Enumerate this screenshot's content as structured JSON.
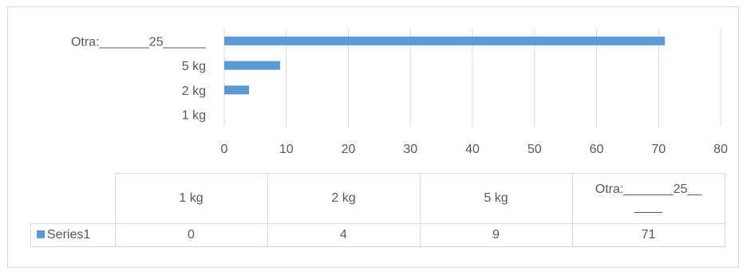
{
  "chart_data": {
    "type": "bar",
    "orientation": "horizontal",
    "categories": [
      "1 kg",
      "2 kg",
      "5 kg",
      "Otra:_______25______"
    ],
    "series": [
      {
        "name": "Series1",
        "values": [
          0,
          4,
          9,
          71
        ]
      }
    ],
    "xlim": [
      0,
      80
    ],
    "xticks": [
      "0",
      "10",
      "20",
      "30",
      "40",
      "50",
      "60",
      "70",
      "80"
    ],
    "grid": true,
    "legend": "data-table",
    "bar_color": "#5b9bd5",
    "grid_color": "#d9d9d9",
    "data_table": {
      "headers": [
        "1 kg",
        "2 kg",
        "5 kg",
        "Otra:_______25__\n____"
      ],
      "series_label": "Series1",
      "values": [
        "0",
        "4",
        "9",
        "71"
      ]
    }
  }
}
